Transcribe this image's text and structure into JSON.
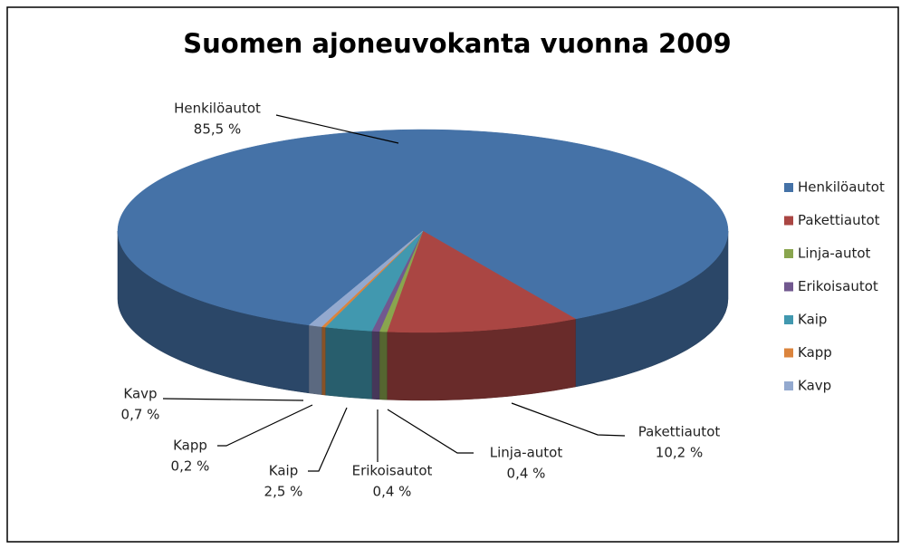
{
  "chart_data": {
    "type": "pie3d",
    "title": "Suomen ajoneuvokanta vuonna 2009",
    "categories": [
      "Henkilöautot",
      "Pakettiautot",
      "Linja-autot",
      "Erikoisautot",
      "Kaip",
      "Kapp",
      "Kavp"
    ],
    "values": [
      85.5,
      10.2,
      0.4,
      0.4,
      2.5,
      0.2,
      0.7
    ],
    "value_labels": [
      "85,5 %",
      "10,2 %",
      "0,4 %",
      "0,4 %",
      "2,5 %",
      "0,2 %",
      "0,7 %"
    ],
    "colors": [
      "#4572a7",
      "#aa4643",
      "#89a54e",
      "#71588f",
      "#4198af",
      "#db843d",
      "#93a9cf"
    ],
    "legend": "right"
  }
}
